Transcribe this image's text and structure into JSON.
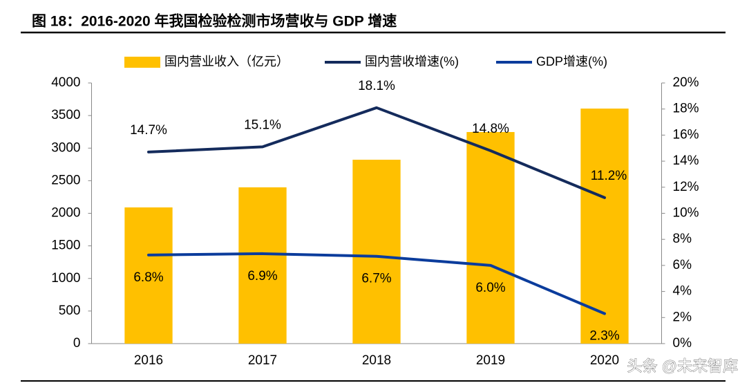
{
  "chart_data": {
    "type": "bar-line",
    "title": "图 18：2016-2020 年我国检验检测市场营收与 GDP 增速",
    "watermark": "头条 @未来智库",
    "categories": [
      "2016",
      "2017",
      "2018",
      "2019",
      "2020"
    ],
    "series": [
      {
        "name": "国内营业收入（亿元）",
        "type": "bar",
        "color": "#FFC000",
        "axis": "y",
        "values": [
          2090,
          2398,
          2822,
          3247,
          3607
        ]
      },
      {
        "name": "国内营收增速(%)",
        "type": "line",
        "color": "#142B5C",
        "axis": "y2",
        "values": [
          14.7,
          15.1,
          18.1,
          14.8,
          11.2
        ],
        "value_labels": [
          "14.7%",
          "15.1%",
          "18.1%",
          "14.8%",
          "11.2%"
        ]
      },
      {
        "name": "GDP增速(%)",
        "type": "line",
        "color": "#0B3C9C",
        "axis": "y2",
        "values": [
          6.8,
          6.9,
          6.7,
          6.0,
          2.3
        ],
        "value_labels": [
          "6.8%",
          "6.9%",
          "6.7%",
          "6.0%",
          "2.3%"
        ]
      }
    ],
    "ylim": [
      0,
      4000
    ],
    "yticks": [
      0,
      500,
      1000,
      1500,
      2000,
      2500,
      3000,
      3500,
      4000
    ],
    "y2lim": [
      0,
      20
    ],
    "y2ticks": [
      {
        "value": 0,
        "label": "0%"
      },
      {
        "value": 2,
        "label": "2%"
      },
      {
        "value": 4,
        "label": "4%"
      },
      {
        "value": 6,
        "label": "6%"
      },
      {
        "value": 8,
        "label": "8%"
      },
      {
        "value": 10,
        "label": "10%"
      },
      {
        "value": 12,
        "label": "12%"
      },
      {
        "value": 14,
        "label": "14%"
      },
      {
        "value": 16,
        "label": "16%"
      },
      {
        "value": 18,
        "label": "18%"
      },
      {
        "value": 20,
        "label": "20%"
      }
    ],
    "legend": "top"
  }
}
